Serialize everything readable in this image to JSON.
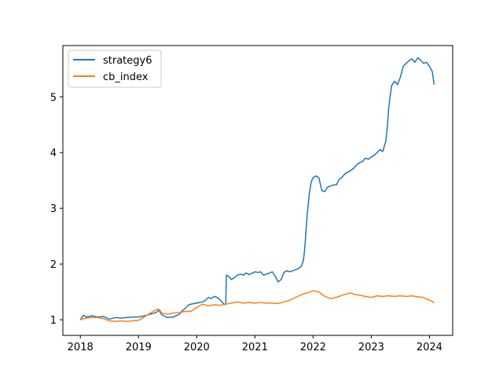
{
  "chart_data": {
    "type": "line",
    "title": "",
    "xlabel": "",
    "ylabel": "",
    "xlim": [
      2017.7,
      2024.4
    ],
    "ylim": [
      0.72,
      5.92
    ],
    "x_ticks": [
      2018,
      2019,
      2020,
      2021,
      2022,
      2023,
      2024
    ],
    "x_tick_labels": [
      "2018",
      "2019",
      "2020",
      "2021",
      "2022",
      "2023",
      "2024"
    ],
    "y_ticks": [
      1,
      2,
      3,
      4,
      5
    ],
    "y_tick_labels": [
      "1",
      "2",
      "3",
      "4",
      "5"
    ],
    "grid": false,
    "legend_position": "top-left",
    "series": [
      {
        "name": "strategy6",
        "color": "#1f77b4",
        "points": [
          [
            2018.0,
            1.0
          ],
          [
            2018.05,
            1.08
          ],
          [
            2018.1,
            1.05
          ],
          [
            2018.2,
            1.07
          ],
          [
            2018.3,
            1.05
          ],
          [
            2018.4,
            1.06
          ],
          [
            2018.5,
            1.01
          ],
          [
            2018.6,
            1.04
          ],
          [
            2018.7,
            1.03
          ],
          [
            2018.8,
            1.04
          ],
          [
            2018.9,
            1.05
          ],
          [
            2019.0,
            1.05
          ],
          [
            2019.1,
            1.07
          ],
          [
            2019.2,
            1.1
          ],
          [
            2019.3,
            1.13
          ],
          [
            2019.35,
            1.17
          ],
          [
            2019.4,
            1.09
          ],
          [
            2019.5,
            1.04
          ],
          [
            2019.6,
            1.05
          ],
          [
            2019.7,
            1.1
          ],
          [
            2019.75,
            1.16
          ],
          [
            2019.8,
            1.2
          ],
          [
            2019.85,
            1.26
          ],
          [
            2019.9,
            1.28
          ],
          [
            2020.0,
            1.3
          ],
          [
            2020.1,
            1.32
          ],
          [
            2020.15,
            1.35
          ],
          [
            2020.2,
            1.4
          ],
          [
            2020.25,
            1.38
          ],
          [
            2020.3,
            1.42
          ],
          [
            2020.35,
            1.4
          ],
          [
            2020.4,
            1.36
          ],
          [
            2020.45,
            1.3
          ],
          [
            2020.48,
            1.27
          ],
          [
            2020.5,
            1.28
          ],
          [
            2020.51,
            1.8
          ],
          [
            2020.55,
            1.78
          ],
          [
            2020.6,
            1.72
          ],
          [
            2020.65,
            1.76
          ],
          [
            2020.7,
            1.8
          ],
          [
            2020.75,
            1.82
          ],
          [
            2020.8,
            1.8
          ],
          [
            2020.85,
            1.84
          ],
          [
            2020.9,
            1.81
          ],
          [
            2021.0,
            1.86
          ],
          [
            2021.05,
            1.85
          ],
          [
            2021.1,
            1.86
          ],
          [
            2021.15,
            1.8
          ],
          [
            2021.2,
            1.82
          ],
          [
            2021.25,
            1.84
          ],
          [
            2021.3,
            1.86
          ],
          [
            2021.35,
            1.78
          ],
          [
            2021.4,
            1.68
          ],
          [
            2021.45,
            1.72
          ],
          [
            2021.5,
            1.85
          ],
          [
            2021.55,
            1.88
          ],
          [
            2021.6,
            1.86
          ],
          [
            2021.65,
            1.88
          ],
          [
            2021.7,
            1.9
          ],
          [
            2021.75,
            1.92
          ],
          [
            2021.8,
            1.96
          ],
          [
            2021.83,
            2.05
          ],
          [
            2021.85,
            2.2
          ],
          [
            2021.88,
            2.6
          ],
          [
            2021.9,
            2.9
          ],
          [
            2021.92,
            3.1
          ],
          [
            2021.94,
            3.3
          ],
          [
            2021.97,
            3.48
          ],
          [
            2022.0,
            3.55
          ],
          [
            2022.05,
            3.58
          ],
          [
            2022.1,
            3.55
          ],
          [
            2022.15,
            3.32
          ],
          [
            2022.2,
            3.3
          ],
          [
            2022.25,
            3.38
          ],
          [
            2022.3,
            3.4
          ],
          [
            2022.35,
            3.42
          ],
          [
            2022.4,
            3.42
          ],
          [
            2022.45,
            3.52
          ],
          [
            2022.5,
            3.56
          ],
          [
            2022.55,
            3.62
          ],
          [
            2022.6,
            3.65
          ],
          [
            2022.65,
            3.68
          ],
          [
            2022.7,
            3.72
          ],
          [
            2022.75,
            3.78
          ],
          [
            2022.8,
            3.82
          ],
          [
            2022.85,
            3.84
          ],
          [
            2022.9,
            3.9
          ],
          [
            2022.95,
            3.88
          ],
          [
            2023.0,
            3.92
          ],
          [
            2023.05,
            3.95
          ],
          [
            2023.1,
            4.0
          ],
          [
            2023.15,
            4.05
          ],
          [
            2023.2,
            4.02
          ],
          [
            2023.22,
            4.1
          ],
          [
            2023.25,
            4.2
          ],
          [
            2023.28,
            4.5
          ],
          [
            2023.3,
            4.8
          ],
          [
            2023.33,
            5.05
          ],
          [
            2023.35,
            5.2
          ],
          [
            2023.4,
            5.28
          ],
          [
            2023.45,
            5.22
          ],
          [
            2023.5,
            5.35
          ],
          [
            2023.55,
            5.55
          ],
          [
            2023.6,
            5.6
          ],
          [
            2023.65,
            5.65
          ],
          [
            2023.7,
            5.68
          ],
          [
            2023.75,
            5.62
          ],
          [
            2023.8,
            5.7
          ],
          [
            2023.85,
            5.66
          ],
          [
            2023.9,
            5.6
          ],
          [
            2023.95,
            5.62
          ],
          [
            2024.0,
            5.55
          ],
          [
            2024.05,
            5.45
          ],
          [
            2024.08,
            5.22
          ]
        ]
      },
      {
        "name": "cb_index",
        "color": "#ff7f0e",
        "points": [
          [
            2018.0,
            1.0
          ],
          [
            2018.1,
            1.03
          ],
          [
            2018.2,
            1.04
          ],
          [
            2018.3,
            1.04
          ],
          [
            2018.4,
            1.02
          ],
          [
            2018.5,
            0.98
          ],
          [
            2018.6,
            0.97
          ],
          [
            2018.7,
            0.98
          ],
          [
            2018.8,
            0.97
          ],
          [
            2018.9,
            0.98
          ],
          [
            2019.0,
            0.99
          ],
          [
            2019.1,
            1.05
          ],
          [
            2019.2,
            1.12
          ],
          [
            2019.3,
            1.18
          ],
          [
            2019.35,
            1.19
          ],
          [
            2019.4,
            1.12
          ],
          [
            2019.5,
            1.1
          ],
          [
            2019.6,
            1.12
          ],
          [
            2019.7,
            1.13
          ],
          [
            2019.8,
            1.15
          ],
          [
            2019.9,
            1.15
          ],
          [
            2020.0,
            1.22
          ],
          [
            2020.1,
            1.28
          ],
          [
            2020.2,
            1.25
          ],
          [
            2020.3,
            1.27
          ],
          [
            2020.4,
            1.26
          ],
          [
            2020.5,
            1.28
          ],
          [
            2020.6,
            1.3
          ],
          [
            2020.7,
            1.32
          ],
          [
            2020.8,
            1.3
          ],
          [
            2020.9,
            1.31
          ],
          [
            2021.0,
            1.3
          ],
          [
            2021.1,
            1.31
          ],
          [
            2021.2,
            1.3
          ],
          [
            2021.3,
            1.3
          ],
          [
            2021.4,
            1.29
          ],
          [
            2021.5,
            1.32
          ],
          [
            2021.6,
            1.35
          ],
          [
            2021.7,
            1.4
          ],
          [
            2021.8,
            1.45
          ],
          [
            2021.85,
            1.47
          ],
          [
            2021.9,
            1.48
          ],
          [
            2022.0,
            1.52
          ],
          [
            2022.05,
            1.51
          ],
          [
            2022.1,
            1.5
          ],
          [
            2022.2,
            1.42
          ],
          [
            2022.3,
            1.38
          ],
          [
            2022.4,
            1.4
          ],
          [
            2022.5,
            1.44
          ],
          [
            2022.6,
            1.47
          ],
          [
            2022.65,
            1.48
          ],
          [
            2022.7,
            1.46
          ],
          [
            2022.8,
            1.44
          ],
          [
            2022.9,
            1.42
          ],
          [
            2023.0,
            1.4
          ],
          [
            2023.1,
            1.43
          ],
          [
            2023.2,
            1.42
          ],
          [
            2023.3,
            1.43
          ],
          [
            2023.4,
            1.42
          ],
          [
            2023.5,
            1.43
          ],
          [
            2023.6,
            1.42
          ],
          [
            2023.7,
            1.43
          ],
          [
            2023.8,
            1.41
          ],
          [
            2023.9,
            1.4
          ],
          [
            2024.0,
            1.35
          ],
          [
            2024.05,
            1.33
          ],
          [
            2024.08,
            1.3
          ]
        ]
      }
    ]
  }
}
